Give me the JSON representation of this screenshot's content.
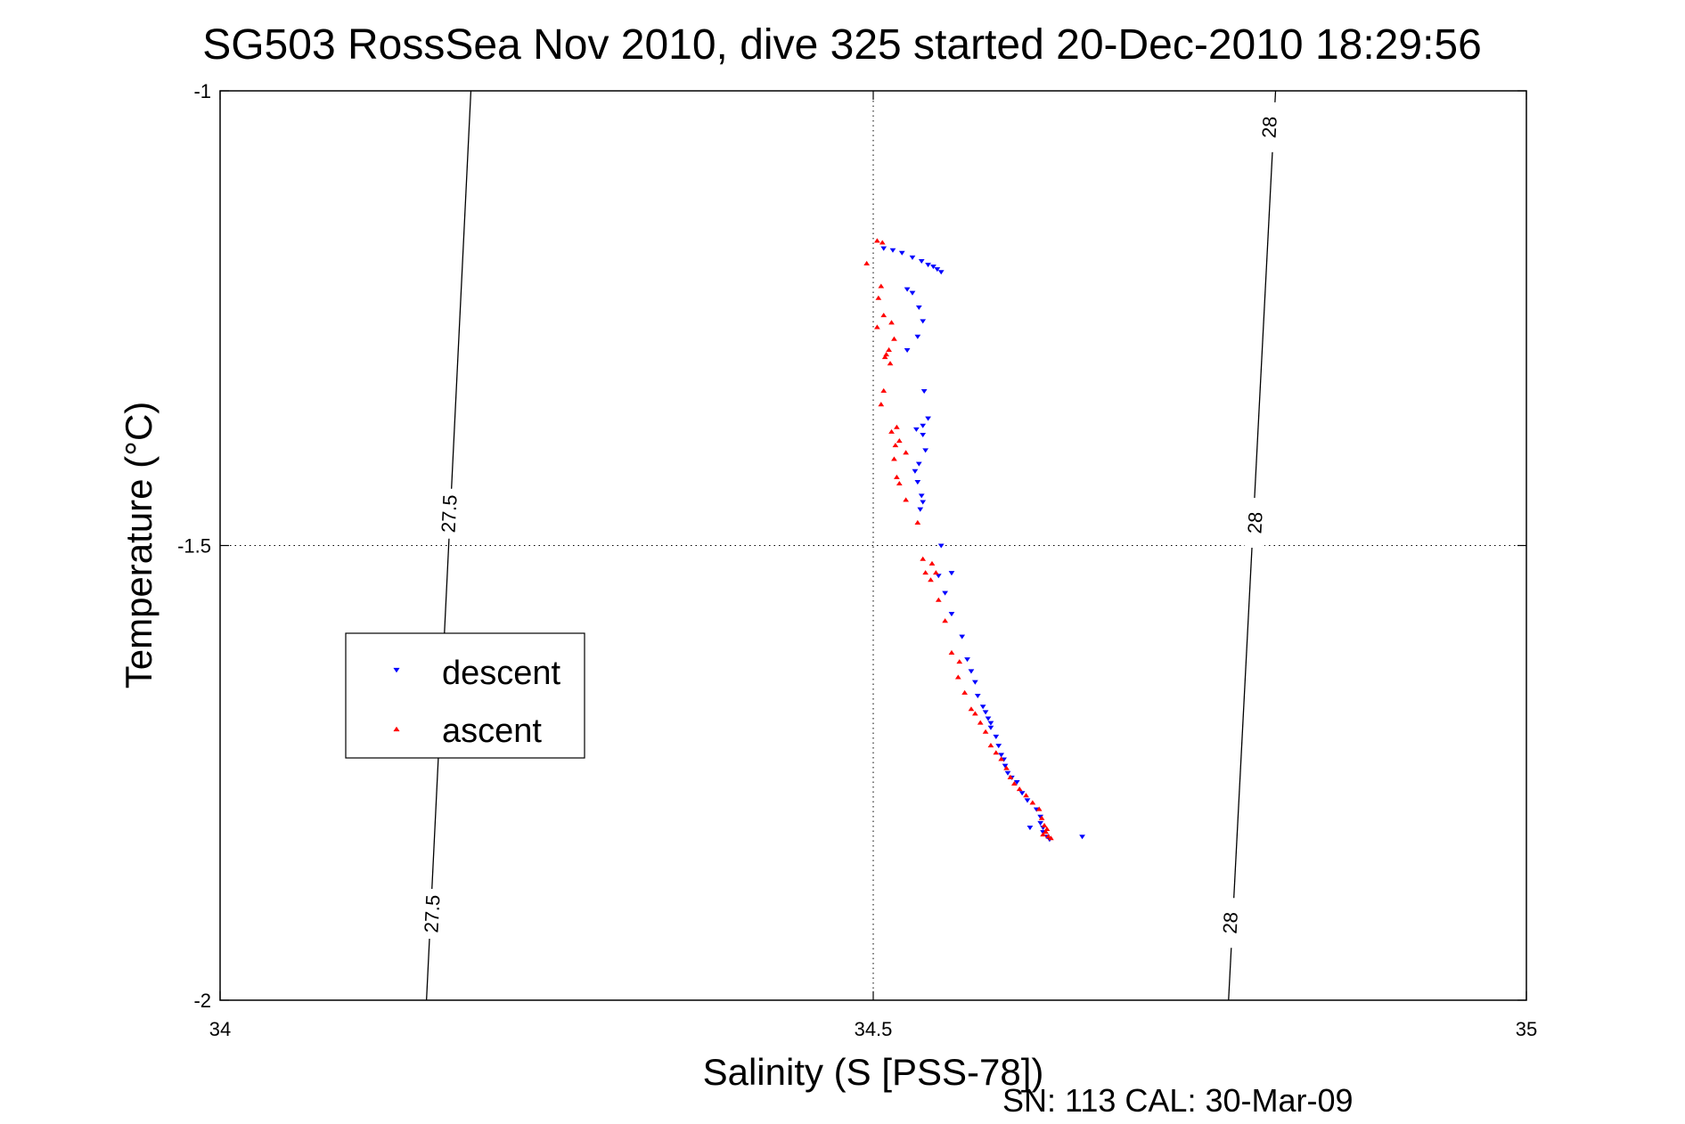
{
  "chart_data": {
    "type": "scatter",
    "title": "SG503 RossSea Nov 2010, dive 325 started 20-Dec-2010 18:29:56",
    "xlabel": "Salinity (S [PSS-78])",
    "ylabel": "Temperature (°C)",
    "xlim": [
      34,
      35
    ],
    "ylim": [
      -2,
      -1
    ],
    "x_ticks": [
      34,
      34.5,
      35
    ],
    "x_tick_labels": [
      "34",
      "34.5",
      "35"
    ],
    "y_ticks": [
      -1,
      -1.5,
      -2
    ],
    "y_tick_labels": [
      "-1",
      "-1.5",
      "-2"
    ],
    "grid": "dotted at major ticks",
    "legend_position": "center-left",
    "footer": "SN: 113  CAL: 30-Mar-09",
    "isopycnals": [
      {
        "label": "27.5",
        "points": [
          [
            34.192,
            -1.0
          ],
          [
            34.158,
            -2.0
          ]
        ],
        "label_positions": [
          [
            34.175,
            -1.465
          ],
          [
            34.162,
            -1.905
          ]
        ]
      },
      {
        "label": "28",
        "points": [
          [
            34.808,
            -1.0
          ],
          [
            34.772,
            -2.0
          ]
        ],
        "label_positions": [
          [
            34.803,
            -1.04
          ],
          [
            34.792,
            -1.475
          ],
          [
            34.773,
            -1.915
          ]
        ]
      }
    ],
    "series": [
      {
        "name": "descent",
        "color": "#0000ff",
        "marker": "triangle-down",
        "points": [
          [
            34.508,
            -1.173
          ],
          [
            34.515,
            -1.175
          ],
          [
            34.522,
            -1.178
          ],
          [
            34.53,
            -1.183
          ],
          [
            34.537,
            -1.187
          ],
          [
            34.542,
            -1.191
          ],
          [
            34.546,
            -1.193
          ],
          [
            34.549,
            -1.196
          ],
          [
            34.552,
            -1.199
          ],
          [
            34.526,
            -1.218
          ],
          [
            34.53,
            -1.222
          ],
          [
            34.535,
            -1.238
          ],
          [
            34.538,
            -1.253
          ],
          [
            34.534,
            -1.27
          ],
          [
            34.526,
            -1.285
          ],
          [
            34.539,
            -1.33
          ],
          [
            34.542,
            -1.36
          ],
          [
            34.538,
            -1.368
          ],
          [
            34.533,
            -1.372
          ],
          [
            34.538,
            -1.378
          ],
          [
            34.54,
            -1.395
          ],
          [
            34.535,
            -1.41
          ],
          [
            34.532,
            -1.418
          ],
          [
            34.534,
            -1.43
          ],
          [
            34.537,
            -1.445
          ],
          [
            34.538,
            -1.452
          ],
          [
            34.536,
            -1.46
          ],
          [
            34.552,
            -1.5
          ],
          [
            34.56,
            -1.53
          ],
          [
            34.55,
            -1.533
          ],
          [
            34.555,
            -1.552
          ],
          [
            34.56,
            -1.575
          ],
          [
            34.568,
            -1.6
          ],
          [
            34.572,
            -1.625
          ],
          [
            34.575,
            -1.638
          ],
          [
            34.578,
            -1.65
          ],
          [
            34.58,
            -1.665
          ],
          [
            34.584,
            -1.677
          ],
          [
            34.586,
            -1.683
          ],
          [
            34.588,
            -1.69
          ],
          [
            34.59,
            -1.695
          ],
          [
            34.59,
            -1.7
          ],
          [
            34.594,
            -1.71
          ],
          [
            34.596,
            -1.72
          ],
          [
            34.598,
            -1.73
          ],
          [
            34.6,
            -1.735
          ],
          [
            34.601,
            -1.742
          ],
          [
            34.603,
            -1.75
          ],
          [
            34.606,
            -1.755
          ],
          [
            34.61,
            -1.76
          ],
          [
            34.614,
            -1.772
          ],
          [
            34.618,
            -1.78
          ],
          [
            34.625,
            -1.79
          ],
          [
            34.628,
            -1.798
          ],
          [
            34.628,
            -1.805
          ],
          [
            34.63,
            -1.81
          ],
          [
            34.63,
            -1.815
          ],
          [
            34.633,
            -1.82
          ],
          [
            34.62,
            -1.81
          ],
          [
            34.635,
            -1.823
          ],
          [
            34.66,
            -1.82
          ]
        ]
      },
      {
        "name": "ascent",
        "color": "#ff0000",
        "marker": "triangle-up",
        "points": [
          [
            34.503,
            -1.165
          ],
          [
            34.507,
            -1.167
          ],
          [
            34.495,
            -1.19
          ],
          [
            34.506,
            -1.215
          ],
          [
            34.504,
            -1.228
          ],
          [
            34.514,
            -1.255
          ],
          [
            34.508,
            -1.247
          ],
          [
            34.503,
            -1.26
          ],
          [
            34.516,
            -1.273
          ],
          [
            34.512,
            -1.285
          ],
          [
            34.51,
            -1.29
          ],
          [
            34.509,
            -1.293
          ],
          [
            34.513,
            -1.3
          ],
          [
            34.508,
            -1.33
          ],
          [
            34.506,
            -1.345
          ],
          [
            34.518,
            -1.37
          ],
          [
            34.514,
            -1.375
          ],
          [
            34.52,
            -1.385
          ],
          [
            34.517,
            -1.39
          ],
          [
            34.525,
            -1.398
          ],
          [
            34.516,
            -1.405
          ],
          [
            34.518,
            -1.425
          ],
          [
            34.52,
            -1.432
          ],
          [
            34.525,
            -1.45
          ],
          [
            34.534,
            -1.475
          ],
          [
            34.538,
            -1.515
          ],
          [
            34.545,
            -1.52
          ],
          [
            34.54,
            -1.53
          ],
          [
            34.548,
            -1.53
          ],
          [
            34.544,
            -1.538
          ],
          [
            34.55,
            -1.56
          ],
          [
            34.555,
            -1.583
          ],
          [
            34.56,
            -1.618
          ],
          [
            34.566,
            -1.628
          ],
          [
            34.565,
            -1.645
          ],
          [
            34.57,
            -1.662
          ],
          [
            34.575,
            -1.68
          ],
          [
            34.578,
            -1.685
          ],
          [
            34.582,
            -1.695
          ],
          [
            34.586,
            -1.705
          ],
          [
            34.59,
            -1.72
          ],
          [
            34.594,
            -1.728
          ],
          [
            34.598,
            -1.735
          ],
          [
            34.602,
            -1.745
          ],
          [
            34.605,
            -1.755
          ],
          [
            34.608,
            -1.762
          ],
          [
            34.612,
            -1.768
          ],
          [
            34.617,
            -1.775
          ],
          [
            34.622,
            -1.783
          ],
          [
            34.627,
            -1.79
          ],
          [
            34.629,
            -1.8
          ],
          [
            34.631,
            -1.808
          ],
          [
            34.632,
            -1.815
          ],
          [
            34.634,
            -1.82
          ],
          [
            34.636,
            -1.822
          ],
          [
            34.63,
            -1.818
          ],
          [
            34.633,
            -1.812
          ]
        ]
      }
    ]
  }
}
